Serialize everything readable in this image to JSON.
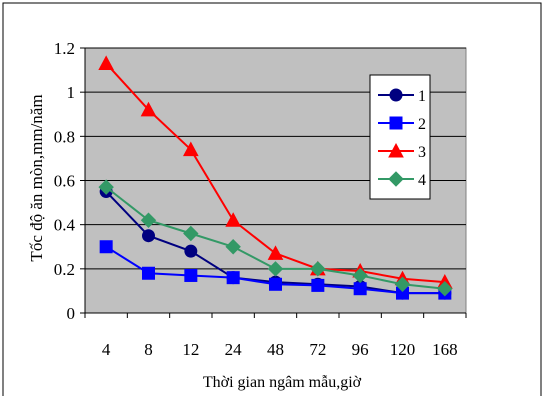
{
  "chart_data": {
    "type": "line",
    "categories": [
      "4",
      "8",
      "12",
      "24",
      "48",
      "72",
      "96",
      "120",
      "168"
    ],
    "xlabel": "Thời gian ngâm mẫu,giờ",
    "ylabel": "Tốc độ ăn mòn,mm/năm",
    "ylim": [
      0,
      1.2
    ],
    "yticks": [
      "0",
      "0.2",
      "0.4",
      "0.6",
      "0.8",
      "1",
      "1.2"
    ],
    "grid": true,
    "legend_position": "right",
    "plot_background": "#c0c0c0",
    "series": [
      {
        "name": "1",
        "color": "#000080",
        "marker": "circle",
        "values": [
          0.55,
          0.35,
          0.28,
          0.16,
          0.14,
          0.13,
          0.12,
          0.09,
          0.09
        ]
      },
      {
        "name": "2",
        "color": "#0000ff",
        "marker": "square",
        "values": [
          0.3,
          0.18,
          0.17,
          0.16,
          0.13,
          0.125,
          0.11,
          0.09,
          0.09
        ]
      },
      {
        "name": "3",
        "color": "#ff0000",
        "marker": "triangle",
        "values": [
          1.13,
          0.92,
          0.74,
          0.42,
          0.27,
          0.2,
          0.19,
          0.155,
          0.14
        ]
      },
      {
        "name": "4",
        "color": "#339966",
        "marker": "diamond",
        "values": [
          0.57,
          0.42,
          0.36,
          0.3,
          0.2,
          0.2,
          0.17,
          0.13,
          0.11
        ]
      }
    ]
  }
}
